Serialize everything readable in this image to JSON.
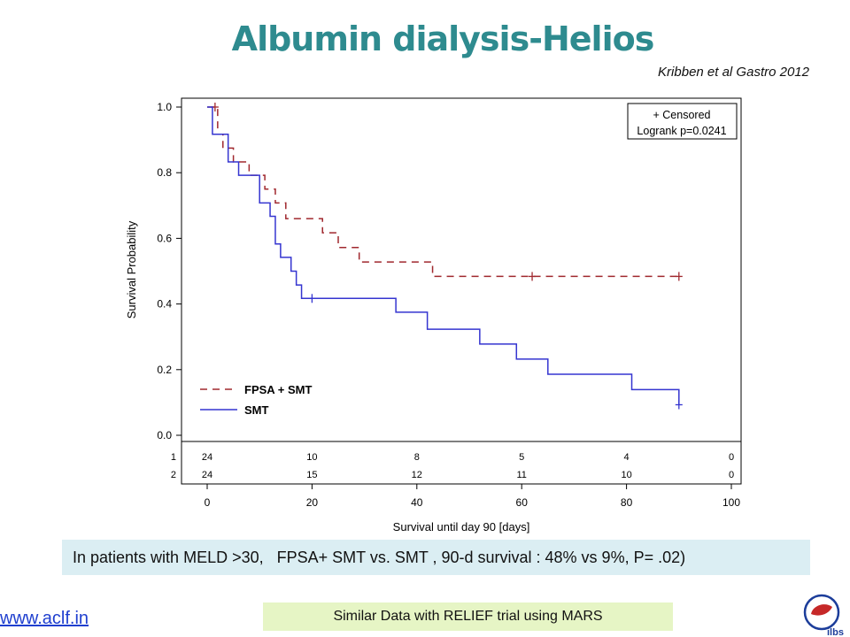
{
  "slide": {
    "title": "Albumin dialysis-Helios",
    "citation": "Kribben et al Gastro 2012",
    "summary": "In patients with MELD >30,   FPSA+ SMT vs. SMT , 90-d survival : 48% vs 9%, P= .02)",
    "website": "www.aclf.in",
    "note": "Similar Data with RELIEF trial using MARS",
    "logo_text": "ilbs"
  },
  "chart_data": {
    "type": "line",
    "chart_subtype": "kaplan-meier step",
    "title": "",
    "xlabel": "Survival until day 90 [days]",
    "ylabel": "Survival Probability",
    "xlim": [
      0,
      100
    ],
    "ylim": [
      0,
      1.0
    ],
    "x_ticks": [
      0,
      20,
      40,
      60,
      80,
      100
    ],
    "y_ticks": [
      "0.0",
      "0.2",
      "0.4",
      "0.6",
      "0.8",
      "1.0"
    ],
    "inset_legend": [
      "+ Censored",
      "Logrank p=0.0241"
    ],
    "legend_position": "bottom-left",
    "series": [
      {
        "name": "FPSA + SMT",
        "color": "#a0282e",
        "dash": "dashed",
        "x": [
          0,
          2,
          3,
          5,
          8,
          11,
          13,
          15,
          22,
          25,
          29,
          43,
          90
        ],
        "y": [
          1.0,
          0.917,
          0.875,
          0.833,
          0.792,
          0.75,
          0.708,
          0.66,
          0.617,
          0.572,
          0.528,
          0.484,
          0.484
        ],
        "censored": [
          [
            1.5,
            1.0
          ],
          [
            62,
            0.484
          ],
          [
            90,
            0.484
          ]
        ]
      },
      {
        "name": "SMT",
        "color": "#3535d0",
        "dash": "solid",
        "x": [
          0,
          1,
          4,
          6,
          10,
          12,
          13,
          14,
          16,
          17,
          18,
          36,
          42,
          52,
          59,
          65,
          81,
          90
        ],
        "y": [
          1.0,
          0.917,
          0.833,
          0.792,
          0.708,
          0.667,
          0.583,
          0.542,
          0.5,
          0.458,
          0.417,
          0.375,
          0.323,
          0.278,
          0.232,
          0.186,
          0.139,
          0.093
        ],
        "censored": [
          [
            20,
            0.417
          ],
          [
            90,
            0.093
          ]
        ]
      }
    ],
    "risk_table": {
      "rows": [
        "1",
        "2"
      ],
      "times": [
        0,
        20,
        40,
        60,
        80,
        100
      ],
      "values": [
        [
          "24",
          "10",
          "8",
          "5",
          "4",
          "0"
        ],
        [
          "24",
          "15",
          "12",
          "11",
          "10",
          "0"
        ]
      ]
    }
  }
}
